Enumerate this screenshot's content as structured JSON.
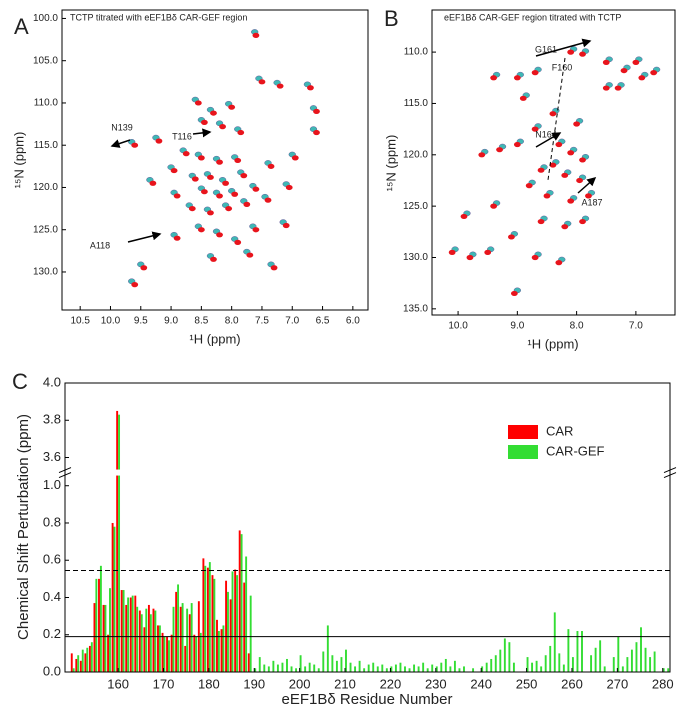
{
  "chart_data": [
    {
      "type": "scatter",
      "panel_label": "A",
      "title": "TCTP titrated with eEF1Bδ CAR-GEF region",
      "x_label": "¹H (ppm)",
      "y_label": "¹⁵N (ppm)",
      "xlim": [
        10.8,
        5.75
      ],
      "ylim": [
        134.5,
        99.0
      ],
      "xticks": [
        10.5,
        {
          "value": 10,
          "label": "10.0"
        },
        9.5,
        {
          "value": 9,
          "label": "9.0"
        },
        8.5,
        {
          "value": 8,
          "label": "8.0"
        },
        7.5,
        {
          "value": 7,
          "label": "7.0"
        },
        6.5,
        {
          "value": 6,
          "label": "6.0"
        }
      ],
      "yticks": [
        {
          "value": 100,
          "label": "100.0"
        },
        {
          "value": 105,
          "label": "105.0"
        },
        {
          "value": 110,
          "label": "110.0"
        },
        {
          "value": 115,
          "label": "115.0"
        },
        {
          "value": 120,
          "label": "120.0"
        },
        {
          "value": 125,
          "label": "125.0"
        },
        {
          "value": 130,
          "label": "130.0"
        }
      ],
      "annotations": [
        "N139",
        "T116",
        "A118"
      ],
      "series": [
        {
          "color": "#3fb8b5",
          "x": [
            8.6,
            8.05,
            8.35,
            7.62,
            7.55,
            7.25,
            6.75,
            6.65,
            8.5,
            8.2,
            7.9,
            9.25,
            8.8,
            8.55,
            8.25,
            7.95,
            7.4,
            7.0,
            9.65,
            9.0,
            8.65,
            8.4,
            8.15,
            7.85,
            8.5,
            8.25,
            8.0,
            7.65,
            8.95,
            9.35,
            8.7,
            8.4,
            8.1,
            7.8,
            7.45,
            7.1,
            8.55,
            8.25,
            7.95,
            7.65,
            8.95,
            8.35,
            7.75,
            7.35,
            9.5,
            6.65,
            7.15,
            9.65
          ],
          "values": [
            109.6,
            110.1,
            110.8,
            101.6,
            107.1,
            107.6,
            107.8,
            110.6,
            112.0,
            112.4,
            113.1,
            114.1,
            115.6,
            116.1,
            116.6,
            116.4,
            117.1,
            116.1,
            114.6,
            117.6,
            118.6,
            118.4,
            119.1,
            118.2,
            120.1,
            120.6,
            120.4,
            119.8,
            120.6,
            119.1,
            122.1,
            122.6,
            122.1,
            121.6,
            121.1,
            119.6,
            124.6,
            125.2,
            126.1,
            124.6,
            125.6,
            128.1,
            127.6,
            129.1,
            129.1,
            113.1,
            124.1,
            131.1
          ]
        },
        {
          "color": "#e8141c",
          "x": [
            8.55,
            8.0,
            8.3,
            7.6,
            7.5,
            7.2,
            6.7,
            6.6,
            8.45,
            8.15,
            7.85,
            9.2,
            8.75,
            8.5,
            8.2,
            7.9,
            7.35,
            6.95,
            9.6,
            8.95,
            8.6,
            8.35,
            8.1,
            7.8,
            8.45,
            8.2,
            7.95,
            7.6,
            8.9,
            9.3,
            8.65,
            8.35,
            8.05,
            7.75,
            7.4,
            7.05,
            8.5,
            8.2,
            7.9,
            7.6,
            8.9,
            8.3,
            7.7,
            7.3,
            9.45,
            6.6,
            7.1,
            9.6
          ],
          "values": [
            110.0,
            110.5,
            111.2,
            102.0,
            107.5,
            108.0,
            108.2,
            111.0,
            112.3,
            112.8,
            113.5,
            114.5,
            116.0,
            116.5,
            117.0,
            116.8,
            117.5,
            116.5,
            115.0,
            118.0,
            119.0,
            118.8,
            119.5,
            118.6,
            120.5,
            121.0,
            120.8,
            120.2,
            121.0,
            119.5,
            122.5,
            123.0,
            122.5,
            122.0,
            121.5,
            120.0,
            125.0,
            125.6,
            126.5,
            125.0,
            126.0,
            128.5,
            128.0,
            129.5,
            129.5,
            113.5,
            124.5,
            131.5
          ]
        }
      ]
    },
    {
      "type": "scatter",
      "panel_label": "B",
      "title": "eEF1Bδ CAR-GEF region titrated with TCTP",
      "x_label": "¹H (ppm)",
      "y_label": "¹⁵N (ppm)",
      "xlim": [
        10.44,
        6.34
      ],
      "ylim": [
        135.6,
        105.9
      ],
      "xticks": [
        {
          "value": 10,
          "label": "10.0"
        },
        {
          "value": 9,
          "label": "9.0"
        },
        {
          "value": 8,
          "label": "8.0"
        },
        {
          "value": 7,
          "label": "7.0"
        }
      ],
      "yticks": [
        {
          "value": 110,
          "label": "110.0"
        },
        {
          "value": 115,
          "label": "115.0"
        },
        {
          "value": 120,
          "label": "120.0"
        },
        {
          "value": 125,
          "label": "125.0"
        },
        {
          "value": 130,
          "label": "130.0"
        },
        {
          "value": 135,
          "label": "135.0"
        }
      ],
      "annotations": [
        "G161",
        "F160",
        "N164",
        "A187"
      ],
      "series": [
        {
          "color": "#3fb8b5",
          "x": [
            8.05,
            7.85,
            7.45,
            7.15,
            6.85,
            6.95,
            6.65,
            7.25,
            7.45,
            8.65,
            8.95,
            9.35,
            8.85,
            8.35,
            7.95,
            8.25,
            8.05,
            7.85,
            8.35,
            8.15,
            7.9,
            8.55,
            8.95,
            9.25,
            9.55,
            8.75,
            8.45,
            8.05,
            7.75,
            9.35,
            9.85,
            8.55,
            8.15,
            7.85,
            9.05,
            9.45,
            9.75,
            10.05,
            8.65,
            8.25,
            9.0,
            8.65
          ],
          "values": [
            109.7,
            109.9,
            110.7,
            111.5,
            112.2,
            110.7,
            111.7,
            113.2,
            113.2,
            111.7,
            112.2,
            112.2,
            114.2,
            115.7,
            116.7,
            118.7,
            119.5,
            120.2,
            120.7,
            121.7,
            122.2,
            121.2,
            118.7,
            119.2,
            119.7,
            122.7,
            123.7,
            124.2,
            123.7,
            124.7,
            125.7,
            126.2,
            126.7,
            126.2,
            127.7,
            129.2,
            129.7,
            129.2,
            129.7,
            130.2,
            133.2,
            117.2
          ]
        },
        {
          "color": "#e8141c",
          "x": [
            8.1,
            7.9,
            7.5,
            7.2,
            6.9,
            7.0,
            6.7,
            7.3,
            7.5,
            8.7,
            9.0,
            9.4,
            8.9,
            8.4,
            8.0,
            8.3,
            8.1,
            7.9,
            8.4,
            8.2,
            7.95,
            8.6,
            9.0,
            9.3,
            9.6,
            8.8,
            8.5,
            8.1,
            7.8,
            9.4,
            9.9,
            8.6,
            8.2,
            7.9,
            9.1,
            9.5,
            9.8,
            10.1,
            8.7,
            8.3,
            9.05,
            8.7
          ],
          "values": [
            110.0,
            110.2,
            111.0,
            111.8,
            112.5,
            111.0,
            112.0,
            113.5,
            113.5,
            112.0,
            112.5,
            112.5,
            114.5,
            116.0,
            117.0,
            119.0,
            119.8,
            120.5,
            121.0,
            122.0,
            122.5,
            121.5,
            119.0,
            119.5,
            120.0,
            123.0,
            124.0,
            124.5,
            124.0,
            125.0,
            126.0,
            126.5,
            127.0,
            126.5,
            128.0,
            129.5,
            130.0,
            129.5,
            130.0,
            130.5,
            133.5,
            117.5
          ]
        }
      ]
    },
    {
      "type": "bar",
      "panel_label": "C",
      "x_label": "eEF1Bδ Residue Number",
      "y_label": "Chemical Shift Perturbation (ppm)",
      "xlim": [
        148.3,
        281.6
      ],
      "ylim": [
        0,
        4.0
      ],
      "ybreak": [
        1.06,
        3.53
      ],
      "legend": "upper right",
      "xticks": [
        160,
        170,
        180,
        190,
        200,
        210,
        220,
        230,
        240,
        250,
        260,
        270,
        280
      ],
      "yticks": [
        {
          "value": 0,
          "label": "0.0"
        },
        0.2,
        0.4,
        0.6,
        0.8,
        {
          "value": 1,
          "label": "1.0"
        },
        3.6,
        3.8,
        {
          "value": 4,
          "label": "4.0"
        }
      ],
      "hlines": [
        {
          "value": 0.19,
          "line_style": "solid"
        },
        {
          "value": 0.545,
          "line_style": "dashed"
        }
      ],
      "x": [
        150,
        151,
        152,
        153,
        154,
        155,
        156,
        157,
        158,
        159,
        160,
        161,
        162,
        163,
        164,
        165,
        166,
        167,
        168,
        169,
        170,
        171,
        172,
        173,
        174,
        175,
        176,
        177,
        178,
        179,
        180,
        181,
        182,
        183,
        184,
        185,
        186,
        187,
        188,
        189,
        190,
        191,
        192,
        193,
        194,
        195,
        196,
        197,
        198,
        199,
        200,
        201,
        202,
        203,
        204,
        205,
        206,
        207,
        208,
        209,
        210,
        211,
        212,
        213,
        214,
        215,
        216,
        217,
        218,
        219,
        220,
        221,
        222,
        223,
        224,
        225,
        226,
        227,
        228,
        229,
        230,
        231,
        232,
        233,
        234,
        235,
        236,
        237,
        238,
        239,
        240,
        241,
        242,
        243,
        244,
        245,
        246,
        247,
        248,
        249,
        250,
        251,
        252,
        253,
        254,
        255,
        256,
        257,
        258,
        259,
        260,
        261,
        262,
        263,
        264,
        265,
        266,
        267,
        268,
        269,
        270,
        271,
        272,
        273,
        274,
        275,
        276,
        277,
        278,
        279,
        280,
        281
      ],
      "series": [
        {
          "name": "CAR",
          "color": "#ff0000",
          "values": [
            0.1,
            0.07,
            0.06,
            0.1,
            0.14,
            0.37,
            0.5,
            0.36,
            0.2,
            0.8,
            3.85,
            0.44,
            0.36,
            0.4,
            0.41,
            0.33,
            0.24,
            0.36,
            0.34,
            0.25,
            0.21,
            0.19,
            0.2,
            0.43,
            0.35,
            0.14,
            0.31,
            0.2,
            0.38,
            0.61,
            0.56,
            0.52,
            0.28,
            0.23,
            0.49,
            0.39,
            0.55,
            0.76,
            0.48,
            0.1,
            null,
            null,
            null,
            null,
            null,
            null,
            null,
            null,
            null,
            null,
            null,
            null,
            null,
            null,
            null,
            null,
            null,
            null,
            null,
            null,
            null,
            null,
            null,
            null,
            null,
            null,
            null,
            null,
            null,
            null,
            null,
            null,
            null,
            null,
            null,
            null,
            null,
            null,
            null,
            null,
            null,
            null,
            null,
            null,
            null,
            null,
            null,
            null,
            null,
            null,
            null,
            null,
            null,
            null,
            null,
            null,
            null,
            null,
            null,
            null,
            null,
            null,
            null,
            null,
            null,
            null,
            null,
            null,
            null,
            null,
            null,
            null,
            null,
            null,
            null,
            null,
            null,
            null,
            null,
            null,
            null,
            null,
            null,
            null,
            null,
            null,
            null,
            null,
            null,
            null,
            null,
            null
          ]
        },
        {
          "name": "CAR-GEF",
          "color": "#33dd33",
          "values": [
            0.02,
            0.09,
            0.12,
            0.13,
            0.16,
            0.5,
            0.57,
            0.36,
            0.45,
            0.78,
            3.83,
            0.44,
            0.4,
            0.41,
            0.35,
            0.31,
            0.34,
            0.31,
            0.33,
            0.25,
            0.19,
            0.17,
            0.35,
            0.47,
            0.37,
            0.34,
            0.37,
            0.19,
            0.21,
            0.57,
            0.59,
            0.5,
            0.22,
            0.25,
            0.43,
            0.54,
            0.52,
            0.74,
            0.62,
            0.41,
            0.02,
            0.08,
            0.04,
            0.03,
            0.06,
            0.04,
            0.05,
            0.07,
            0.03,
            0.02,
            0.09,
            0.03,
            0.05,
            0.04,
            0.02,
            0.11,
            0.25,
            0.09,
            0.06,
            0.08,
            0.12,
            0.05,
            0.03,
            0.06,
            0.02,
            0.04,
            0.05,
            0.03,
            0.04,
            0.02,
            0.03,
            0.04,
            0.05,
            0.03,
            0.02,
            0.04,
            0.03,
            0.05,
            0.02,
            0.04,
            0.03,
            0.05,
            0.07,
            0.03,
            0.06,
            0.02,
            0.03,
            null,
            0.02,
            null,
            0.03,
            0.05,
            0.07,
            0.09,
            0.12,
            0.18,
            0.16,
            0.05,
            null,
            null,
            0.08,
            0.05,
            0.06,
            0.03,
            0.09,
            0.14,
            0.32,
            0.1,
            0.04,
            0.23,
            0.08,
            0.22,
            0.22,
            null,
            0.09,
            0.13,
            0.17,
            0.03,
            null,
            0.08,
            0.19,
            0.03,
            0.08,
            0.12,
            0.16,
            0.24,
            0.13,
            0.08,
            0.11,
            null,
            0.02,
            0.02
          ]
        }
      ]
    }
  ]
}
